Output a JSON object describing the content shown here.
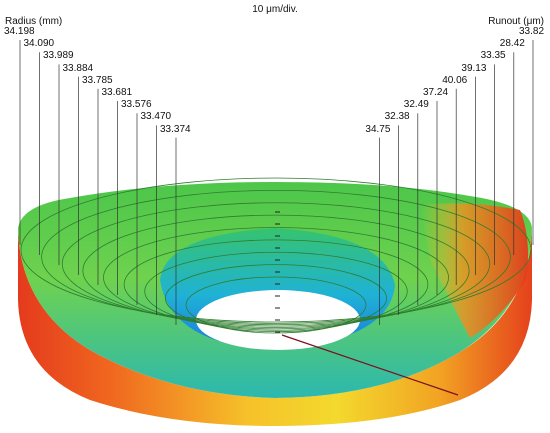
{
  "chart_data": {
    "type": "3d-surface",
    "title": "10 μm/div.",
    "left_axis_label": "Radius (mm)",
    "right_axis_label": "Runout (μm)",
    "series": [
      {
        "radius_mm": "34.198",
        "runout_um": "33.82"
      },
      {
        "radius_mm": "34.090",
        "runout_um": "28.42"
      },
      {
        "radius_mm": "33.989",
        "runout_um": "33.35"
      },
      {
        "radius_mm": "33.884",
        "runout_um": "39.13"
      },
      {
        "radius_mm": "33.785",
        "runout_um": "40.06"
      },
      {
        "radius_mm": "33.681",
        "runout_um": "37.24"
      },
      {
        "radius_mm": "33.576",
        "runout_um": "32.49"
      },
      {
        "radius_mm": "33.470",
        "runout_um": "32.38"
      },
      {
        "radius_mm": "33.374",
        "runout_um": "34.75"
      }
    ],
    "colormap": [
      "#1e4fd8",
      "#18b6e6",
      "#2fd6b8",
      "#5fd24a",
      "#c8e43a",
      "#f6d02e",
      "#f39a22",
      "#e8371d"
    ]
  }
}
